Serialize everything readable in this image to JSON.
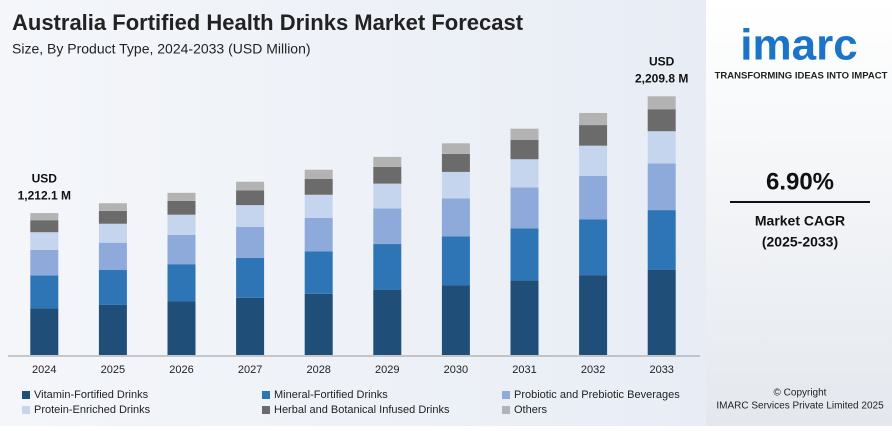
{
  "chart_data": {
    "type": "stacked_bar",
    "title": "Australia Fortified Health Drinks Market Forecast",
    "subtitle": "Size, By Product Type, 2024-2033 (USD Million)",
    "categories": [
      "2024",
      "2025",
      "2026",
      "2027",
      "2028",
      "2029",
      "2030",
      "2031",
      "2032",
      "2033"
    ],
    "series": [
      {
        "name": "Vitamin-Fortified Drinks",
        "color": "#1f4e79",
        "values": [
          400.0,
          427.7,
          457.1,
          488.4,
          522.1,
          558.4,
          596.6,
          637.9,
          682.1,
          729.2
        ]
      },
      {
        "name": "Mineral-Fortified Drinks",
        "color": "#2e75b6",
        "values": [
          278.8,
          298.1,
          318.6,
          340.4,
          363.9,
          389.2,
          415.8,
          444.6,
          475.4,
          508.3
        ]
      },
      {
        "name": "Probiotic and Prebiotic Beverages",
        "color": "#8eaadb",
        "values": [
          218.2,
          233.3,
          249.3,
          266.4,
          284.8,
          304.6,
          325.4,
          347.9,
          372.1,
          397.8
        ]
      },
      {
        "name": "Protein-Enriched Drinks",
        "color": "#c5d5ee",
        "values": [
          151.5,
          162.0,
          173.1,
          185.0,
          197.8,
          211.5,
          226.0,
          241.6,
          258.4,
          276.2
        ]
      },
      {
        "name": "Herbal and Botanical Infused Drinks",
        "color": "#6b6b6b",
        "values": [
          103.0,
          110.2,
          117.7,
          125.8,
          134.5,
          143.8,
          153.7,
          164.3,
          175.7,
          187.8
        ]
      },
      {
        "name": "Others",
        "color": "#b3b3b3",
        "values": [
          60.6,
          64.8,
          69.3,
          74.0,
          79.1,
          84.6,
          90.4,
          96.7,
          103.4,
          110.5
        ]
      }
    ],
    "annotations": [
      "USD",
      "1,212.1 M",
      "USD",
      "2,209.8 M"
    ],
    "ylim": [
      0,
      2400
    ]
  },
  "sidebar": {
    "logo": "imarc",
    "tagline": "TRANSFORMING IDEAS INTO IMPACT",
    "cagr": "6.90%",
    "cagr_label": "Market CAGR",
    "cagr_period": "(2025-2033)",
    "copyright": "© Copyright",
    "company": "IMARC Services Private Limited 2025"
  }
}
